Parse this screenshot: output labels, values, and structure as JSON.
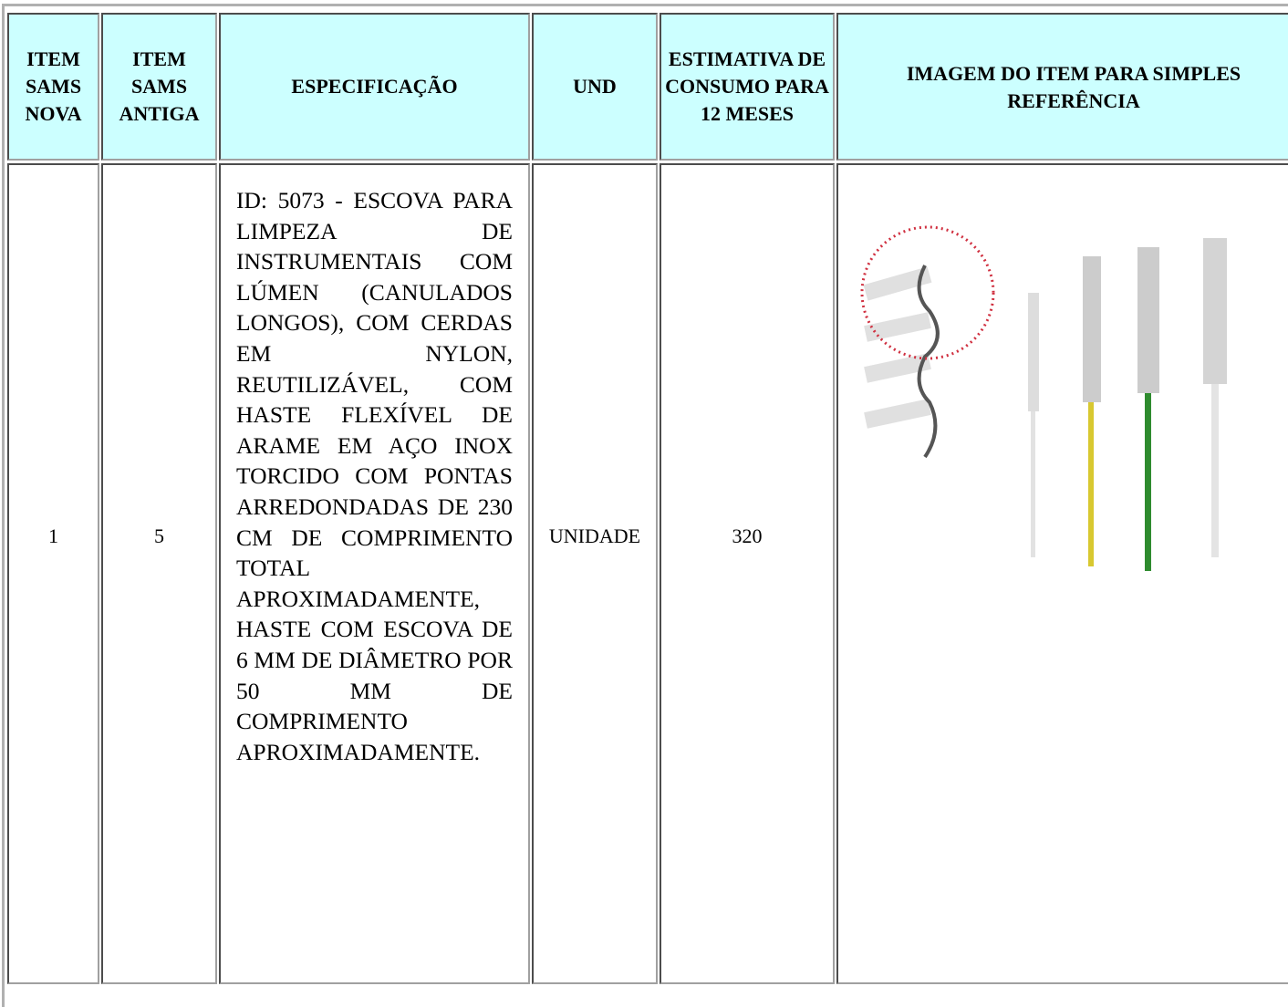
{
  "table": {
    "header": [
      "ITEM SAMS NOVA",
      "ITEM SAMS ANTIGA",
      "ESPECIFICAÇÃO",
      "UND",
      "ESTIMATIVA DE CONSUMO PARA 12 MESES",
      "IMAGEM DO ITEM PARA SIMPLES REFERÊNCIA"
    ],
    "rows": [
      [
        1,
        5,
        "ID: 5073 - ESCOVA PARA LIMPEZA DE INSTRUMENTAIS COM LÚMEN (CANULADOS LONGOS), COM CERDAS EM NYLON, REUTILIZÁVEL, COM HASTE FLEXÍVEL DE ARAME EM AÇO INOX TORCIDO COM PONTAS ARREDONDADAS DE 230 CM DE COMPRIMENTO TOTAL APROXIMADAMENTE, HASTE COM ESCOVA DE 6 MM DE DIÂMETRO POR 50 MM DE COMPRIMENTO APROXIMADAMENTE.",
        "UNIDADE",
        320
      ]
    ]
  }
}
